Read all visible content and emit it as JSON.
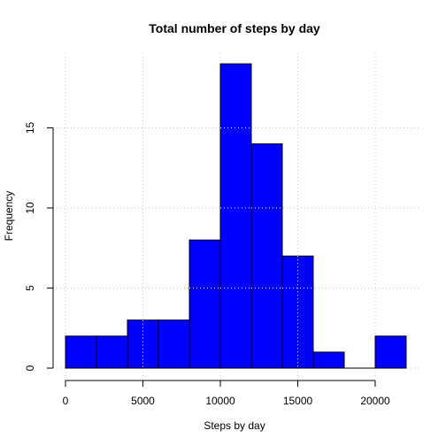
{
  "chart_data": {
    "type": "bar",
    "title": "Total number of steps by day",
    "xlabel": "Steps by day",
    "ylabel": "Frequency",
    "bin_edges": [
      0,
      2000,
      4000,
      6000,
      8000,
      10000,
      12000,
      14000,
      16000,
      18000,
      20000,
      22000
    ],
    "values": [
      2,
      2,
      3,
      3,
      8,
      19,
      14,
      7,
      1,
      0,
      2
    ],
    "xlim": [
      0,
      22000
    ],
    "ylim": [
      0,
      19
    ],
    "x_ticks": [
      0,
      5000,
      10000,
      15000,
      20000
    ],
    "x_tick_labels": [
      "0",
      "5000",
      "10000",
      "15000",
      "20000"
    ],
    "y_ticks": [
      0,
      5,
      10,
      15
    ],
    "y_tick_labels": [
      "0",
      "5",
      "10",
      "15"
    ],
    "grid": true,
    "bar_color": "#0000ff",
    "bar_border_color": "#000000"
  }
}
